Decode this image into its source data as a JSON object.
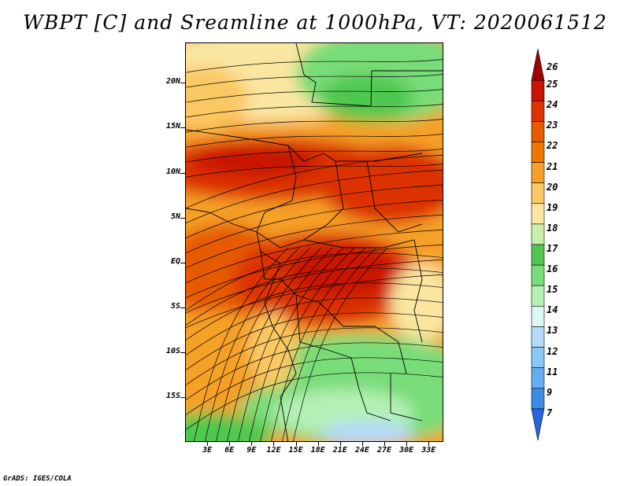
{
  "title": "WBPT [C] and Sreamline at 1000hPa, VT: 2020061512",
  "footer": "GrADS: IGES/COLA",
  "map": {
    "lat_labels": [
      "20N",
      "15N",
      "10N",
      "5N",
      "EQ",
      "5S",
      "10S",
      "15S"
    ],
    "lon_labels": [
      "3E",
      "6E",
      "9E",
      "12E",
      "15E",
      "18E",
      "21E",
      "24E",
      "27E",
      "30E",
      "33E"
    ],
    "lat_range": [
      -20,
      24.5
    ],
    "lon_range": [
      0,
      35
    ]
  },
  "colorbar": {
    "labels": [
      "26",
      "25",
      "24",
      "23",
      "22",
      "21",
      "20",
      "19",
      "18",
      "17",
      "16",
      "15",
      "14",
      "13",
      "12",
      "11",
      "9",
      "7"
    ],
    "colors": [
      "#a00000",
      "#c81400",
      "#dc3200",
      "#e65a00",
      "#f07800",
      "#f5a028",
      "#fac864",
      "#fae6a0",
      "#c8f0aa",
      "#50c850",
      "#78dc78",
      "#b4f0b4",
      "#dcf8f0",
      "#b4dcfa",
      "#8cc8f5",
      "#64aff0",
      "#3c8ce6",
      "#2864dc"
    ]
  }
}
